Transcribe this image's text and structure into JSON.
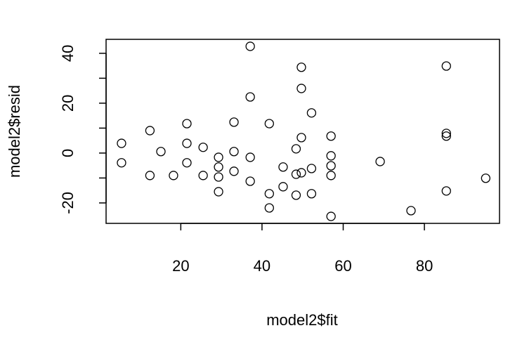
{
  "chart_data": {
    "type": "scatter",
    "xlabel": "model2$fit",
    "ylabel": "model2$resid",
    "x": [
      5.4,
      5.4,
      12.4,
      12.4,
      15.1,
      18.2,
      21.5,
      21.5,
      21.5,
      25.5,
      25.5,
      29.3,
      29.3,
      29.3,
      29.3,
      33.1,
      33.1,
      33.1,
      37.1,
      37.1,
      37.1,
      37.1,
      41.8,
      41.8,
      41.8,
      45.2,
      45.2,
      48.4,
      48.4,
      48.4,
      49.7,
      49.7,
      49.7,
      49.7,
      52.2,
      52.2,
      52.2,
      57.0,
      57.0,
      57.0,
      57.0,
      57.0,
      69.1,
      76.7,
      85.4,
      85.4,
      85.4,
      85.4,
      95.1
    ],
    "values": [
      3.9,
      -3.9,
      9.0,
      -9.0,
      0.6,
      -9.0,
      11.8,
      3.9,
      -3.9,
      2.3,
      -9.0,
      -1.7,
      -5.6,
      -9.6,
      -15.5,
      12.4,
      0.6,
      -7.3,
      42.8,
      22.5,
      -1.7,
      -11.3,
      11.8,
      -16.3,
      -22.0,
      -5.6,
      -13.5,
      1.7,
      -8.5,
      -16.9,
      34.4,
      25.9,
      6.2,
      -7.9,
      16.1,
      -6.2,
      -16.3,
      6.8,
      -1.1,
      -5.1,
      -9.0,
      -25.4,
      -3.4,
      -23.1,
      34.9,
      7.9,
      6.8,
      -15.2,
      -10.1
    ],
    "color": "#000000",
    "xlim": [
      1.6,
      98.5
    ],
    "ylim": [
      -28.2,
      45.6
    ],
    "xticks": [
      20,
      40,
      60,
      80
    ],
    "yticks": [
      -20,
      0,
      20,
      40
    ],
    "yminor_ticks": [
      -10,
      10,
      30
    ]
  }
}
